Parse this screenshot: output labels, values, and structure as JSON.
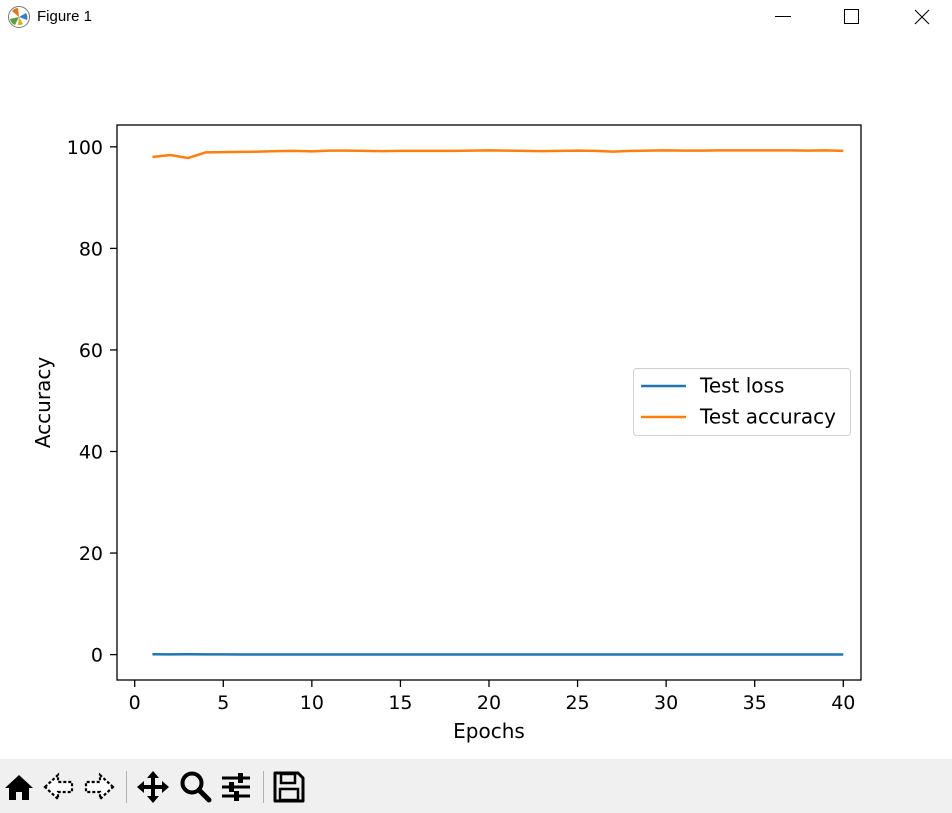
{
  "window": {
    "title": "Figure 1",
    "icons": [
      "matplotlib-icon",
      "minimize-icon",
      "maximize-icon",
      "close-icon"
    ]
  },
  "toolbar": {
    "buttons": [
      "home-icon",
      "back-icon",
      "forward-icon",
      "pan-icon",
      "zoom-icon",
      "configure-subplots-icon",
      "save-icon"
    ]
  },
  "colors": {
    "loss": "#1f77b4",
    "accuracy": "#ff7f0e"
  },
  "chart_data": {
    "type": "line",
    "title": "",
    "xlabel": "Epochs",
    "ylabel": "Accuracy",
    "xlim": [
      -1,
      41
    ],
    "ylim": [
      -5,
      104.3
    ],
    "xticks": [
      0,
      5,
      10,
      15,
      20,
      25,
      30,
      35,
      40
    ],
    "yticks": [
      0,
      20,
      40,
      60,
      80,
      100
    ],
    "grid": false,
    "legend_position": "center-right",
    "x": [
      1,
      2,
      3,
      4,
      5,
      6,
      7,
      8,
      9,
      10,
      11,
      12,
      13,
      14,
      15,
      16,
      17,
      18,
      19,
      20,
      21,
      22,
      23,
      24,
      25,
      26,
      27,
      28,
      29,
      30,
      31,
      32,
      33,
      34,
      35,
      36,
      37,
      38,
      39,
      40
    ],
    "series": [
      {
        "name": "Test loss",
        "color": "#1f77b4",
        "values": [
          0.06,
          0.05,
          0.07,
          0.04,
          0.04,
          0.03,
          0.03,
          0.03,
          0.03,
          0.03,
          0.03,
          0.03,
          0.03,
          0.03,
          0.03,
          0.03,
          0.03,
          0.03,
          0.03,
          0.03,
          0.03,
          0.03,
          0.03,
          0.03,
          0.03,
          0.03,
          0.03,
          0.03,
          0.03,
          0.03,
          0.03,
          0.03,
          0.03,
          0.03,
          0.03,
          0.03,
          0.03,
          0.03,
          0.03,
          0.03
        ]
      },
      {
        "name": "Test accuracy",
        "color": "#ff7f0e",
        "values": [
          98.0,
          98.4,
          97.8,
          98.9,
          98.95,
          99.0,
          99.05,
          99.15,
          99.2,
          99.1,
          99.25,
          99.25,
          99.2,
          99.15,
          99.2,
          99.2,
          99.2,
          99.2,
          99.25,
          99.3,
          99.25,
          99.2,
          99.15,
          99.2,
          99.25,
          99.2,
          99.05,
          99.2,
          99.25,
          99.3,
          99.25,
          99.25,
          99.3,
          99.3,
          99.3,
          99.3,
          99.3,
          99.25,
          99.3,
          99.2
        ]
      }
    ]
  }
}
